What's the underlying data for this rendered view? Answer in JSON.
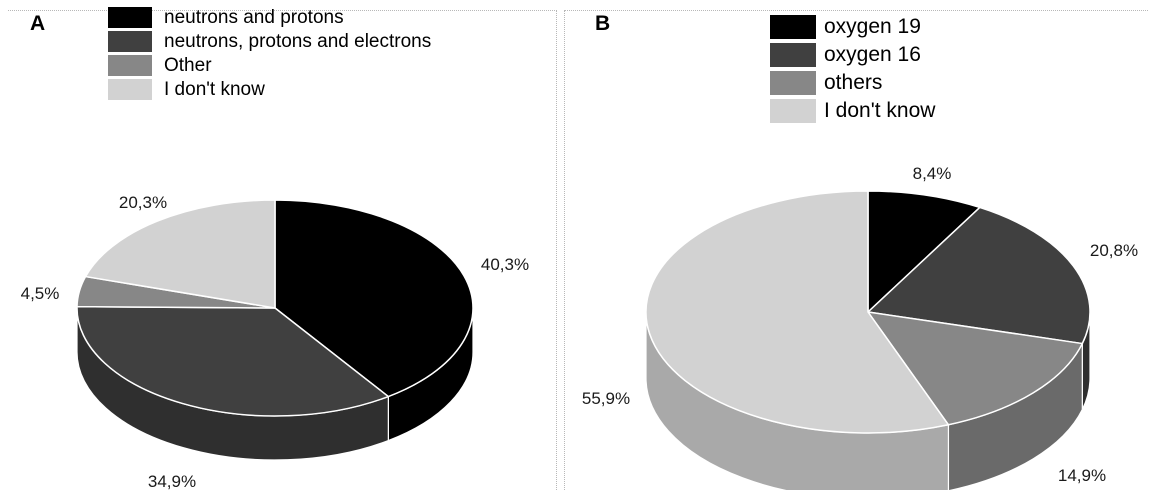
{
  "panels": [
    {
      "letter": "A",
      "colors": [
        "#000000",
        "#404040",
        "#878787",
        "#d2d2d2"
      ],
      "side_colors": [
        "#000000",
        "#2f2f2f",
        "#6a6a6a",
        "#a9a9a9"
      ],
      "chart_data": {
        "type": "pie",
        "title": "",
        "categories": [
          "neutrons and protons",
          "neutrons, protons and electrons",
          "Other",
          "I don't know"
        ],
        "values": [
          40.3,
          34.9,
          4.5,
          20.3
        ],
        "value_labels": [
          "40,3%",
          "34,9%",
          "4,5%",
          "20,3%"
        ],
        "unit": "%",
        "legend_position": "top",
        "style": "3d"
      }
    },
    {
      "letter": "B",
      "colors": [
        "#000000",
        "#404040",
        "#878787",
        "#d2d2d2"
      ],
      "side_colors": [
        "#000000",
        "#2f2f2f",
        "#6a6a6a",
        "#a9a9a9"
      ],
      "chart_data": {
        "type": "pie",
        "title": "",
        "categories": [
          "oxygen 19",
          "oxygen 16",
          "others",
          "I don't know"
        ],
        "values": [
          8.4,
          20.8,
          14.9,
          55.9
        ],
        "value_labels": [
          "8,4%",
          "20,8%",
          "14,9%",
          "55,9%"
        ],
        "unit": "%",
        "legend_position": "top",
        "style": "3d"
      }
    }
  ]
}
